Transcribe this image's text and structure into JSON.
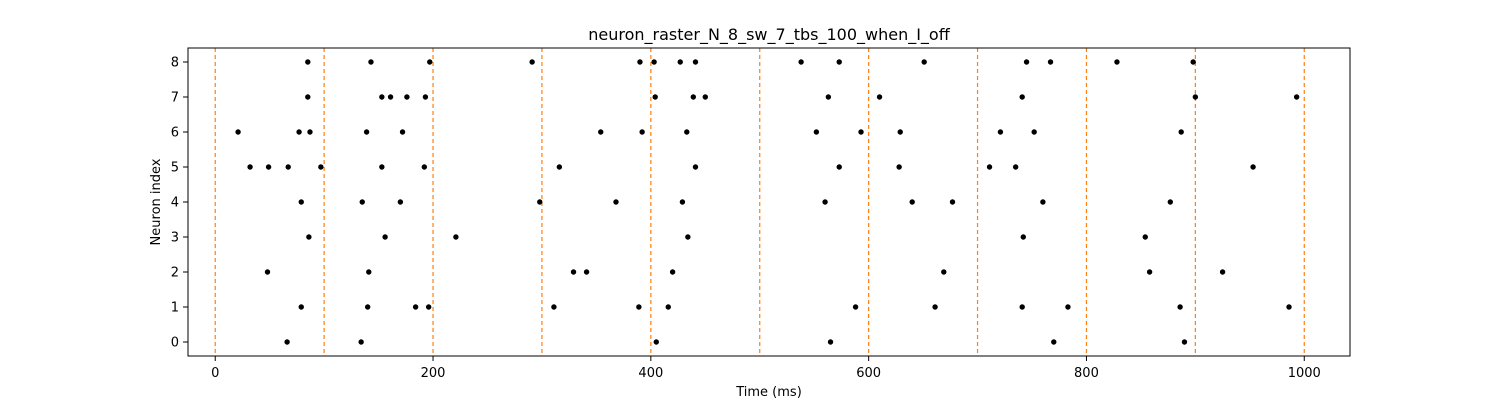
{
  "chart_data": {
    "type": "scatter",
    "title": "neuron_raster_N_8_sw_7_tbs_100_when_I_off",
    "xlabel": "Time (ms)",
    "ylabel": "Neuron index",
    "xlim": [
      -25,
      1042
    ],
    "ylim": [
      -0.4,
      8.4
    ],
    "x_ticks": [
      0,
      200,
      400,
      600,
      800,
      1000
    ],
    "x_tick_labels": [
      "0",
      "200",
      "400",
      "600",
      "800",
      "1000"
    ],
    "y_ticks": [
      0,
      1,
      2,
      3,
      4,
      5,
      6,
      7,
      8
    ],
    "y_tick_labels": [
      "0",
      "1",
      "2",
      "3",
      "4",
      "5",
      "6",
      "7",
      "8"
    ],
    "grid": false,
    "marker_color": "#000000",
    "vline_color": "#ff7f0e",
    "vlines": [
      0,
      100,
      200,
      300,
      400,
      500,
      600,
      700,
      800,
      900,
      1000
    ],
    "spikes": [
      {
        "neuron": 8,
        "times": [
          85,
          143,
          197,
          291,
          390,
          403,
          427,
          441,
          538,
          573,
          651,
          745,
          767,
          828,
          898
        ]
      },
      {
        "neuron": 7,
        "times": [
          85,
          153,
          161,
          176,
          193,
          404,
          439,
          450,
          563,
          610,
          741,
          900,
          993
        ]
      },
      {
        "neuron": 6,
        "times": [
          21,
          77,
          87,
          139,
          172,
          354,
          392,
          433,
          552,
          593,
          629,
          721,
          752,
          887
        ]
      },
      {
        "neuron": 5,
        "times": [
          32,
          49,
          67,
          97,
          153,
          192,
          316,
          441,
          573,
          628,
          711,
          735,
          953
        ]
      },
      {
        "neuron": 4,
        "times": [
          79,
          135,
          170,
          298,
          368,
          429,
          560,
          640,
          677,
          760,
          877
        ]
      },
      {
        "neuron": 3,
        "times": [
          86,
          156,
          221,
          434,
          742,
          854
        ]
      },
      {
        "neuron": 2,
        "times": [
          48,
          141,
          329,
          341,
          420,
          669,
          858,
          925
        ]
      },
      {
        "neuron": 1,
        "times": [
          79,
          140,
          184,
          196,
          311,
          389,
          416,
          588,
          661,
          741,
          783,
          886,
          986
        ]
      },
      {
        "neuron": 0,
        "times": [
          66,
          134,
          405,
          565,
          770,
          890
        ]
      }
    ]
  }
}
